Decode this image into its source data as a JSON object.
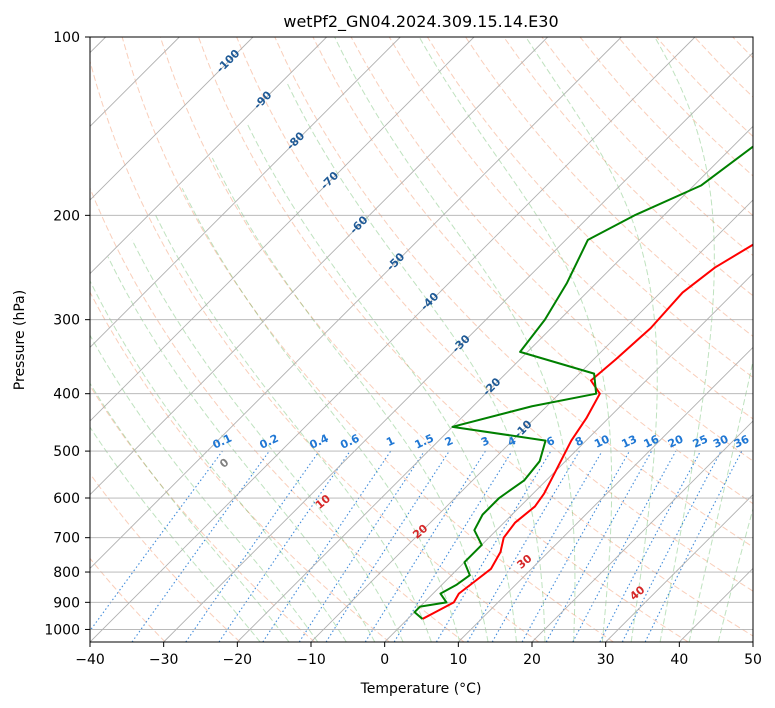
{
  "chart_data": {
    "type": "line",
    "title": "wetPf2_GN04.2024.309.15.14.E30",
    "xlabel": "Temperature (°C)",
    "ylabel": "Pressure (hPa)",
    "xlim": [
      -40,
      50
    ],
    "ylim": [
      1050,
      100
    ],
    "y_scale": "log",
    "x_ticks": [
      -40,
      -30,
      -20,
      -10,
      0,
      10,
      20,
      30,
      40,
      50
    ],
    "y_ticks": [
      100,
      200,
      300,
      400,
      500,
      600,
      700,
      800,
      900,
      1000
    ],
    "grid": true,
    "skew": true,
    "colors": {
      "temperature": "#ff0000",
      "dewpoint": "#008000",
      "isotherm": "#b0b0b0",
      "dry_adiabat": "#f4a582",
      "moist_adiabat": "#2ca02c",
      "mixing_ratio": "#1f77d4",
      "isotherm_label": "#1f5a96",
      "dry_label": "#d62728",
      "zero_label": "#808080"
    },
    "series": [
      {
        "key": "temperature",
        "points": [
          [
            2.0,
            960
          ],
          [
            3.0,
            930
          ],
          [
            4.0,
            900
          ],
          [
            3.5,
            870
          ],
          [
            4.0,
            830
          ],
          [
            4.5,
            790
          ],
          [
            3.5,
            740
          ],
          [
            2.0,
            700
          ],
          [
            1.5,
            660
          ],
          [
            2.0,
            620
          ],
          [
            1.5,
            590
          ],
          [
            0.0,
            540
          ],
          [
            -2.0,
            480
          ],
          [
            -3.0,
            440
          ],
          [
            -4.5,
            400
          ],
          [
            -7.5,
            380
          ],
          [
            -7.0,
            350
          ],
          [
            -6.5,
            310
          ],
          [
            -7.0,
            270
          ],
          [
            -6.0,
            245
          ],
          [
            -3.5,
            220
          ],
          [
            -3.5,
            200
          ],
          [
            -1.0,
            180
          ],
          [
            1.0,
            160
          ],
          [
            1.0,
            140
          ],
          [
            1.0,
            125
          ],
          [
            5.0,
            112
          ],
          [
            6.0,
            100
          ]
        ]
      },
      {
        "key": "dewpoint",
        "points": [
          [
            2.0,
            960
          ],
          [
            0.0,
            935
          ],
          [
            0.0,
            915
          ],
          [
            3.0,
            900
          ],
          [
            1.0,
            870
          ],
          [
            2.0,
            840
          ],
          [
            2.5,
            810
          ],
          [
            0.0,
            770
          ],
          [
            0.0,
            720
          ],
          [
            -3.0,
            680
          ],
          [
            -4.0,
            640
          ],
          [
            -4.0,
            600
          ],
          [
            -3.0,
            560
          ],
          [
            -3.5,
            520
          ],
          [
            -5.5,
            480
          ],
          [
            -20.0,
            455
          ],
          [
            -12.0,
            420
          ],
          [
            -5.0,
            400
          ],
          [
            -8.0,
            370
          ],
          [
            -21.0,
            340
          ],
          [
            -22.0,
            300
          ],
          [
            -24.0,
            260
          ],
          [
            -27.0,
            220
          ],
          [
            -24.0,
            200
          ],
          [
            -19.0,
            178
          ],
          [
            -17.0,
            150
          ],
          [
            -11.0,
            125
          ],
          [
            -3.0,
            100
          ]
        ]
      }
    ],
    "isotherm_labels": [
      "-100",
      "-90",
      "-80",
      "-70",
      "-60",
      "-50",
      "-40",
      "-30",
      "-20",
      "-10"
    ],
    "mixing_ratio_labels": [
      "0.1",
      "0.2",
      "0.4",
      "0.6",
      "1",
      "1.5",
      "2",
      "3",
      "4",
      "6",
      "8",
      "10",
      "13",
      "16",
      "20",
      "25",
      "30",
      "36"
    ],
    "zero_label": "0",
    "dry_adiabat_labels": [
      "10",
      "20",
      "30",
      "40"
    ]
  }
}
